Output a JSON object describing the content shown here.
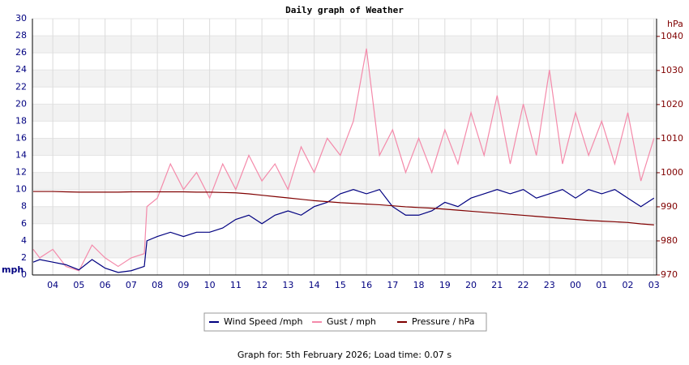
{
  "chart_data": {
    "type": "line",
    "title": "Daily graph of Weather",
    "y_label": "mph",
    "y2_label": "hPa",
    "footer": "Graph for: 5th February 2026; Load time: 0.07 s",
    "x": [
      3.25,
      3.5,
      4,
      4.5,
      5,
      5.5,
      6,
      6.5,
      7,
      7.5,
      7.6,
      8,
      8.5,
      9,
      9.5,
      10,
      10.5,
      11,
      11.5,
      12,
      12.5,
      13,
      13.5,
      14,
      14.5,
      15,
      15.5,
      16,
      16.5,
      17,
      17.5,
      18,
      18.5,
      19,
      19.5,
      20,
      20.5,
      21,
      21.5,
      22,
      22.5,
      23,
      23.5,
      24,
      24.5,
      25,
      25.5,
      26,
      26.5,
      27
    ],
    "series": [
      {
        "name": "Wind Speed /mph",
        "color": "#000080",
        "axis": "y",
        "values": [
          1.5,
          1.8,
          1.5,
          1.2,
          0.6,
          1.8,
          0.8,
          0.3,
          0.5,
          1,
          4,
          4.5,
          5,
          4.5,
          5,
          5,
          5.5,
          6.5,
          7,
          6,
          7,
          7.5,
          7,
          8,
          8.5,
          9.5,
          10,
          9.5,
          10,
          8,
          7,
          7,
          7.5,
          8.5,
          8,
          9,
          9.5,
          10,
          9.5,
          10,
          9,
          9.5,
          10,
          9,
          10,
          9.5,
          10,
          9,
          8,
          9
        ]
      },
      {
        "name": "Gust / mph",
        "color": "#f48aaa",
        "axis": "y",
        "values": [
          3,
          2,
          3,
          1,
          0.5,
          3.5,
          2,
          1,
          2,
          2.5,
          8,
          9,
          13,
          10,
          12,
          9,
          13,
          10,
          14,
          11,
          13,
          10,
          15,
          12,
          16,
          14,
          18,
          26.5,
          14,
          17,
          12,
          16,
          12,
          17,
          13,
          19,
          14,
          21,
          13,
          20,
          14,
          24,
          13,
          19,
          14,
          18,
          13,
          19,
          11,
          16
        ]
      },
      {
        "name": "Pressure / hPa",
        "color": "#800000",
        "axis": "y2",
        "values": [
          994.5,
          994.5,
          994.5,
          994.4,
          994.3,
          994.3,
          994.3,
          994.3,
          994.4,
          994.4,
          994.4,
          994.4,
          994.4,
          994.4,
          994.3,
          994.3,
          994.2,
          994.1,
          993.8,
          993.4,
          993,
          992.6,
          992.2,
          991.8,
          991.5,
          991.2,
          991,
          990.8,
          990.6,
          990.3,
          990,
          989.8,
          989.6,
          989.3,
          989,
          988.7,
          988.4,
          988.1,
          987.8,
          987.5,
          987.2,
          986.9,
          986.6,
          986.3,
          986,
          985.8,
          985.6,
          985.4,
          985,
          984.7
        ]
      }
    ],
    "xlim": [
      3.22,
      27.1
    ],
    "xticks": [
      {
        "value": 4,
        "label": "04"
      },
      {
        "value": 5,
        "label": "05"
      },
      {
        "value": 6,
        "label": "06"
      },
      {
        "value": 7,
        "label": "07"
      },
      {
        "value": 8,
        "label": "08"
      },
      {
        "value": 9,
        "label": "09"
      },
      10,
      11,
      12,
      13,
      14,
      15,
      16,
      17,
      18,
      19,
      20,
      21,
      22,
      23,
      {
        "value": 24,
        "label": "00"
      },
      {
        "value": 25,
        "label": "01"
      },
      {
        "value": 26,
        "label": "02"
      },
      {
        "value": 27,
        "label": "03"
      }
    ],
    "ylim": [
      0,
      30
    ],
    "yticks": [
      0,
      2,
      4,
      6,
      8,
      10,
      12,
      14,
      16,
      18,
      20,
      22,
      24,
      26,
      28,
      30
    ],
    "y2lim": [
      970,
      1045.2
    ],
    "y2ticks": [
      970,
      980,
      990,
      1000,
      1010,
      1020,
      1030,
      1040
    ],
    "grid": true
  }
}
